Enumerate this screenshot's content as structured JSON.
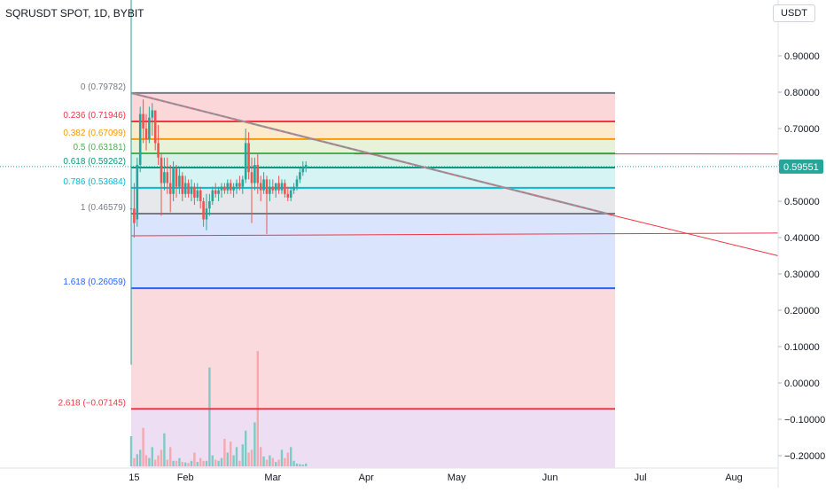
{
  "header": {
    "symbol": "SQRUSDT SPOT, 1D, BYBIT",
    "currency": "USDT"
  },
  "price_axis": {
    "ticks": [
      "0.90000",
      "0.80000",
      "0.70000",
      "0.60000",
      "0.50000",
      "0.40000",
      "0.30000",
      "0.20000",
      "0.10000",
      "0.00000",
      "−0.10000",
      "−0.20000"
    ],
    "tick_values": [
      0.9,
      0.8,
      0.7,
      0.6,
      0.5,
      0.4,
      0.3,
      0.2,
      0.1,
      0.0,
      -0.1,
      -0.2
    ],
    "last_price": "0.59551",
    "last_price_value": 0.59551,
    "last_price_color": "#26a69a"
  },
  "time_axis": {
    "labels": [
      "15",
      "Feb",
      "Mar",
      "Apr",
      "May",
      "Jun",
      "Jul",
      "Aug"
    ]
  },
  "fibonacci": {
    "levels": [
      {
        "label": "0 (0.79782)",
        "value": 0.79782,
        "color": "#787b86"
      },
      {
        "label": "0.236 (0.71946)",
        "value": 0.71946,
        "color": "#f23645"
      },
      {
        "label": "0.382 (0.67099)",
        "value": 0.67099,
        "color": "#ff9800"
      },
      {
        "label": "0.5 (0.63181)",
        "value": 0.63181,
        "color": "#4caf50"
      },
      {
        "label": "0.618 (0.59262)",
        "value": 0.59262,
        "color": "#089981"
      },
      {
        "label": "0.786 (0.53684)",
        "value": 0.53684,
        "color": "#00bcd4"
      },
      {
        "label": "1 (0.46579)",
        "value": 0.46579,
        "color": "#787b86"
      },
      {
        "label": "1.618 (0.26059)",
        "value": 0.26059,
        "color": "#2962ff"
      },
      {
        "label": "2.618 (−0.07145)",
        "value": -0.07145,
        "color": "#f23645"
      }
    ],
    "band_colors": [
      "#fad0d2",
      "#fde6c4",
      "#e3f0d2",
      "#cfeee4",
      "#cff2f2",
      "#e3e4e8",
      "#d3e0fd",
      "#fad4d8",
      "#ead8f2"
    ]
  },
  "chart_data": {
    "type": "candlestick",
    "series": [
      {
        "name": "SQRUSDT",
        "start_date": "2024-01-14",
        "candles": [
          [
            0.48,
            0.48,
            0.05,
            0.48
          ],
          [
            0.48,
            0.55,
            0.4,
            0.44
          ],
          [
            0.45,
            0.62,
            0.43,
            0.6
          ],
          [
            0.6,
            0.76,
            0.58,
            0.74
          ],
          [
            0.74,
            0.78,
            0.66,
            0.7
          ],
          [
            0.7,
            0.74,
            0.64,
            0.67
          ],
          [
            0.67,
            0.76,
            0.66,
            0.73
          ],
          [
            0.73,
            0.77,
            0.68,
            0.75
          ],
          [
            0.75,
            0.75,
            0.64,
            0.66
          ],
          [
            0.66,
            0.71,
            0.6,
            0.62
          ],
          [
            0.62,
            0.63,
            0.46,
            0.55
          ],
          [
            0.55,
            0.62,
            0.53,
            0.58
          ],
          [
            0.58,
            0.62,
            0.52,
            0.55
          ],
          [
            0.55,
            0.6,
            0.47,
            0.52
          ],
          [
            0.52,
            0.61,
            0.5,
            0.59
          ],
          [
            0.59,
            0.6,
            0.51,
            0.54
          ],
          [
            0.54,
            0.59,
            0.52,
            0.57
          ],
          [
            0.57,
            0.58,
            0.5,
            0.52
          ],
          [
            0.52,
            0.57,
            0.51,
            0.55
          ],
          [
            0.55,
            0.56,
            0.51,
            0.52
          ],
          [
            0.52,
            0.56,
            0.5,
            0.54
          ],
          [
            0.54,
            0.55,
            0.49,
            0.51
          ],
          [
            0.51,
            0.55,
            0.5,
            0.53
          ],
          [
            0.53,
            0.54,
            0.48,
            0.5
          ],
          [
            0.5,
            0.51,
            0.43,
            0.45
          ],
          [
            0.45,
            0.52,
            0.42,
            0.48
          ],
          [
            0.48,
            0.52,
            0.46,
            0.5
          ],
          [
            0.5,
            0.54,
            0.49,
            0.53
          ],
          [
            0.53,
            0.55,
            0.51,
            0.52
          ],
          [
            0.52,
            0.54,
            0.5,
            0.53
          ],
          [
            0.53,
            0.55,
            0.51,
            0.54
          ],
          [
            0.54,
            0.55,
            0.52,
            0.53
          ],
          [
            0.53,
            0.56,
            0.52,
            0.55
          ],
          [
            0.55,
            0.56,
            0.52,
            0.53
          ],
          [
            0.53,
            0.55,
            0.51,
            0.54
          ],
          [
            0.54,
            0.56,
            0.52,
            0.55
          ],
          [
            0.55,
            0.57,
            0.53,
            0.54
          ],
          [
            0.54,
            0.57,
            0.52,
            0.56
          ],
          [
            0.56,
            0.7,
            0.55,
            0.66
          ],
          [
            0.66,
            0.69,
            0.56,
            0.58
          ],
          [
            0.58,
            0.62,
            0.44,
            0.55
          ],
          [
            0.55,
            0.62,
            0.53,
            0.6
          ],
          [
            0.6,
            0.63,
            0.52,
            0.55
          ],
          [
            0.55,
            0.57,
            0.5,
            0.53
          ],
          [
            0.53,
            0.58,
            0.52,
            0.56
          ],
          [
            0.56,
            0.57,
            0.41,
            0.52
          ],
          [
            0.52,
            0.56,
            0.5,
            0.54
          ],
          [
            0.54,
            0.56,
            0.52,
            0.53
          ],
          [
            0.53,
            0.55,
            0.51,
            0.55
          ],
          [
            0.55,
            0.57,
            0.52,
            0.53
          ],
          [
            0.53,
            0.56,
            0.52,
            0.55
          ],
          [
            0.55,
            0.56,
            0.51,
            0.52
          ],
          [
            0.52,
            0.54,
            0.5,
            0.51
          ],
          [
            0.51,
            0.54,
            0.5,
            0.53
          ],
          [
            0.53,
            0.55,
            0.52,
            0.54
          ],
          [
            0.54,
            0.57,
            0.53,
            0.56
          ],
          [
            0.56,
            0.59,
            0.55,
            0.58
          ],
          [
            0.58,
            0.61,
            0.57,
            0.59
          ],
          [
            0.59,
            0.61,
            0.58,
            0.6
          ]
        ]
      }
    ],
    "volume": [
      55,
      15,
      22,
      30,
      70,
      20,
      15,
      35,
      12,
      20,
      30,
      60,
      12,
      35,
      10,
      10,
      15,
      8,
      7,
      6,
      10,
      25,
      8,
      15,
      10,
      10,
      180,
      20,
      12,
      10,
      15,
      50,
      25,
      45,
      20,
      35,
      10,
      40,
      65,
      25,
      30,
      80,
      210,
      35,
      18,
      12,
      20,
      15,
      8,
      12,
      30,
      15,
      25,
      35,
      10,
      5,
      4,
      3,
      5
    ],
    "xlabel": "",
    "ylabel": "",
    "ylim": [
      -0.225,
      0.985
    ],
    "x_range_days": [
      "2024-01-10",
      "2024-08-18"
    ]
  },
  "drawings": {
    "trendline": {
      "from_date": "2024-01-14",
      "from_value": 0.79782,
      "to_date": "2024-06-20",
      "to_value": 0.46579,
      "color": "#787b86"
    },
    "red_line_1": {
      "from_date": "2024-03-28",
      "from_value": 0.6302,
      "to_date": "2024-08-18",
      "to_value": 0.63,
      "color": "#f23645"
    },
    "red_line_2": {
      "from_date": "2024-01-14",
      "from_value": 0.405,
      "to_date": "2024-08-18",
      "to_value": 0.4125,
      "color": "#f23645"
    },
    "red_line_3": {
      "from_date": "2024-06-20",
      "from_value": 0.465,
      "to_date": "2024-08-18",
      "to_value": 0.35,
      "color": "#f23645"
    }
  }
}
